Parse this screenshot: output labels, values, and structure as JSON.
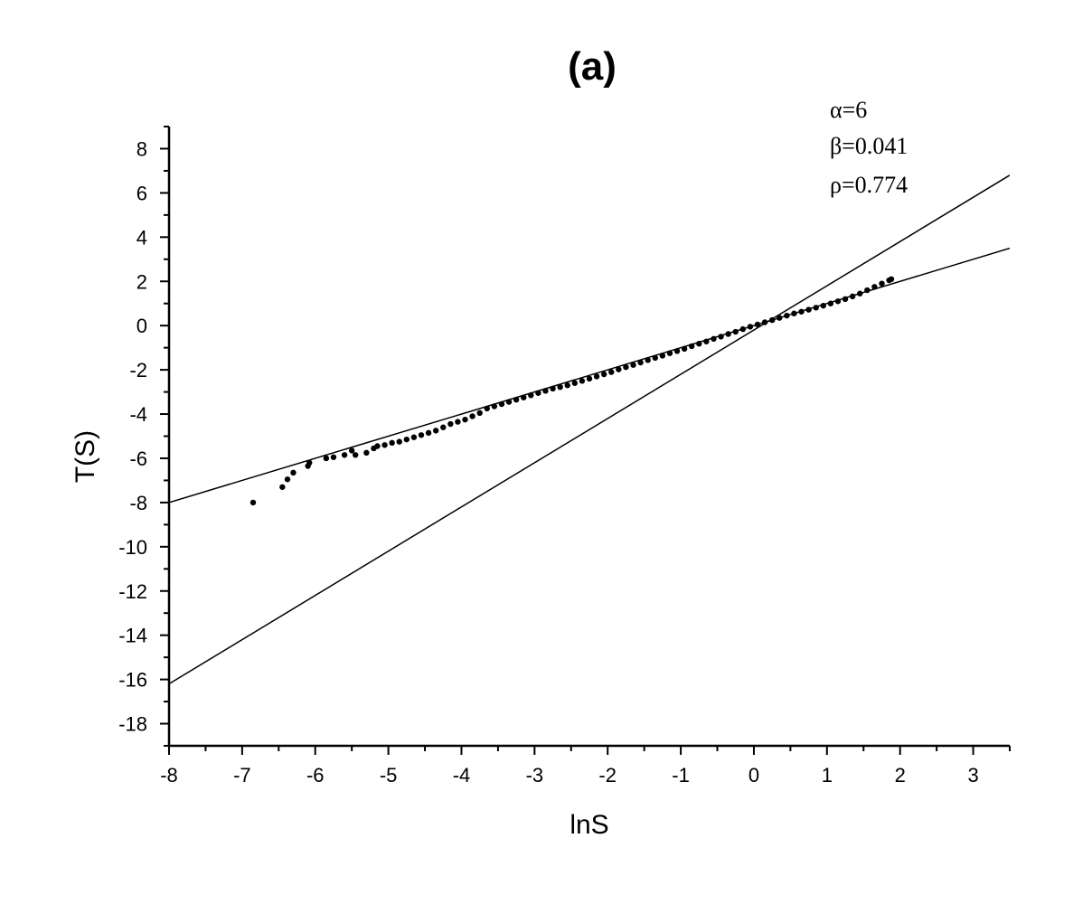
{
  "chart_data": {
    "type": "scatter",
    "title": "(a)",
    "xlabel": "lnS",
    "ylabel": "T(S)",
    "xlim": [
      -8,
      3.5
    ],
    "ylim": [
      -19,
      9
    ],
    "x_ticks": [
      -8,
      -7,
      -6,
      -5,
      -4,
      -3,
      -2,
      -1,
      0,
      1,
      2,
      3
    ],
    "y_ticks": [
      8,
      6,
      4,
      2,
      0,
      -2,
      -4,
      -6,
      -8,
      -10,
      -12,
      -14,
      -16,
      -18
    ],
    "annotations": [
      "α=6",
      "β=0.041",
      "ρ=0.774"
    ],
    "grid": false,
    "lines": [
      {
        "points": [
          [
            -8,
            -8.0
          ],
          [
            3.5,
            3.5
          ]
        ]
      },
      {
        "points": [
          [
            -8,
            -16.2
          ],
          [
            3.5,
            6.8
          ]
        ]
      }
    ],
    "scatter_points": [
      [
        -6.85,
        -8.0
      ],
      [
        -6.45,
        -7.3
      ],
      [
        -6.38,
        -6.95
      ],
      [
        -6.3,
        -6.65
      ],
      [
        -6.1,
        -6.35
      ],
      [
        -6.08,
        -6.2
      ],
      [
        -5.85,
        -6.0
      ],
      [
        -5.75,
        -5.95
      ],
      [
        -5.6,
        -5.85
      ],
      [
        -5.5,
        -5.65
      ],
      [
        -5.45,
        -5.85
      ],
      [
        -5.3,
        -5.75
      ],
      [
        -5.2,
        -5.55
      ],
      [
        -5.15,
        -5.45
      ],
      [
        -5.05,
        -5.4
      ],
      [
        -4.95,
        -5.3
      ],
      [
        -4.85,
        -5.25
      ],
      [
        -4.75,
        -5.15
      ],
      [
        -4.65,
        -5.05
      ],
      [
        -4.55,
        -4.95
      ],
      [
        -4.45,
        -4.85
      ],
      [
        -4.35,
        -4.75
      ],
      [
        -4.25,
        -4.6
      ],
      [
        -4.15,
        -4.45
      ],
      [
        -4.05,
        -4.35
      ],
      [
        -3.95,
        -4.25
      ],
      [
        -3.85,
        -4.1
      ],
      [
        -3.75,
        -3.95
      ],
      [
        -3.65,
        -3.75
      ],
      [
        -3.55,
        -3.65
      ],
      [
        -3.45,
        -3.55
      ],
      [
        -3.35,
        -3.45
      ],
      [
        -3.25,
        -3.35
      ],
      [
        -3.15,
        -3.25
      ],
      [
        -3.05,
        -3.15
      ],
      [
        -2.95,
        -3.05
      ],
      [
        -2.85,
        -2.95
      ],
      [
        -2.75,
        -2.85
      ],
      [
        -2.65,
        -2.78
      ],
      [
        -2.55,
        -2.7
      ],
      [
        -2.45,
        -2.6
      ],
      [
        -2.35,
        -2.5
      ],
      [
        -2.25,
        -2.4
      ],
      [
        -2.15,
        -2.3
      ],
      [
        -2.05,
        -2.2
      ],
      [
        -1.95,
        -2.1
      ],
      [
        -1.85,
        -1.98
      ],
      [
        -1.75,
        -1.88
      ],
      [
        -1.65,
        -1.78
      ],
      [
        -1.55,
        -1.67
      ],
      [
        -1.45,
        -1.56
      ],
      [
        -1.35,
        -1.46
      ],
      [
        -1.25,
        -1.36
      ],
      [
        -1.15,
        -1.25
      ],
      [
        -1.05,
        -1.15
      ],
      [
        -0.95,
        -1.05
      ],
      [
        -0.85,
        -0.93
      ],
      [
        -0.75,
        -0.82
      ],
      [
        -0.65,
        -0.72
      ],
      [
        -0.55,
        -0.6
      ],
      [
        -0.45,
        -0.5
      ],
      [
        -0.35,
        -0.38
      ],
      [
        -0.25,
        -0.28
      ],
      [
        -0.15,
        -0.16
      ],
      [
        -0.05,
        -0.05
      ],
      [
        0.05,
        0.05
      ],
      [
        0.15,
        0.15
      ],
      [
        0.25,
        0.25
      ],
      [
        0.35,
        0.35
      ],
      [
        0.45,
        0.45
      ],
      [
        0.55,
        0.55
      ],
      [
        0.65,
        0.63
      ],
      [
        0.75,
        0.72
      ],
      [
        0.85,
        0.81
      ],
      [
        0.95,
        0.9
      ],
      [
        1.05,
        1.0
      ],
      [
        1.15,
        1.1
      ],
      [
        1.25,
        1.2
      ],
      [
        1.35,
        1.32
      ],
      [
        1.45,
        1.45
      ],
      [
        1.55,
        1.6
      ],
      [
        1.65,
        1.75
      ],
      [
        1.75,
        1.9
      ],
      [
        1.85,
        2.05
      ],
      [
        1.88,
        2.1
      ]
    ]
  }
}
